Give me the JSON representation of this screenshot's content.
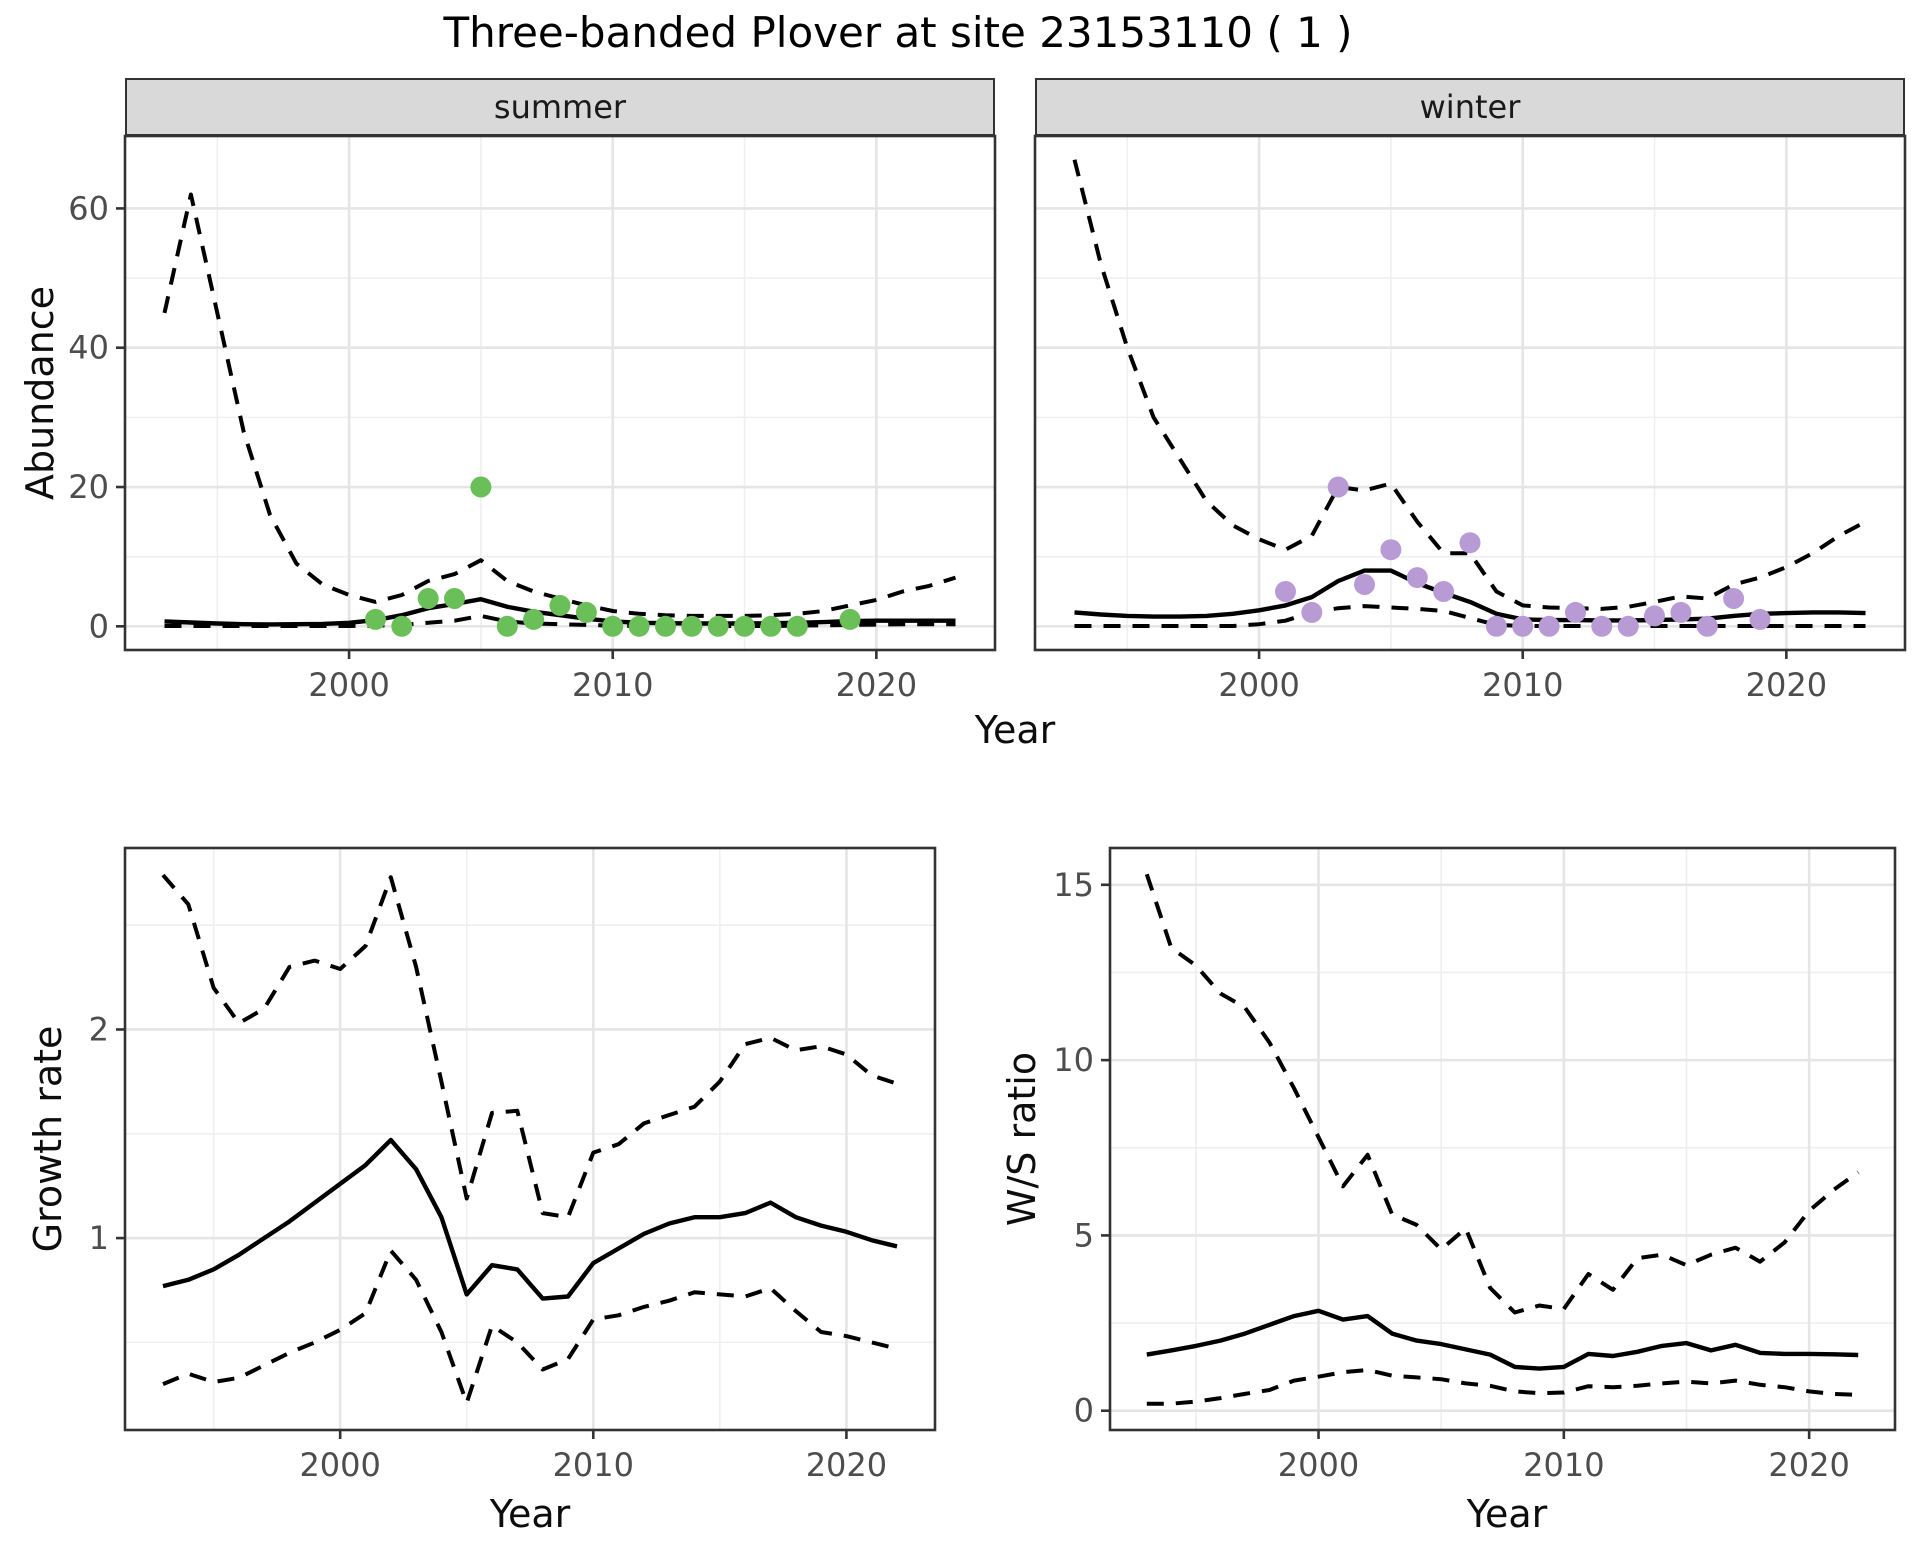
{
  "title": "Three-banded Plover at site 23153110 ( 1 )",
  "facets": [
    {
      "label": "summer"
    },
    {
      "label": "winter"
    }
  ],
  "axes": {
    "abundance_label": "Abundance",
    "growth_label": "Growth rate",
    "ws_label": "W/S ratio",
    "year_label": "Year"
  },
  "colors": {
    "summer_points": "#6abf59",
    "winter_points": "#b89bd5",
    "line": "#000000",
    "grid_major": "#e5e5e5",
    "grid_minor": "#efefef",
    "strip_bg": "#d9d9d9",
    "axis_text": "#4d4d4d",
    "panel_border": "#333333"
  },
  "chart_data": [
    {
      "id": "abundance-summer",
      "type": "line",
      "facet": "summer",
      "xlabel": "Year",
      "ylabel": "Abundance",
      "xlim": [
        1991.5,
        2024.5
      ],
      "ylim": [
        -3.4,
        70.4
      ],
      "xticks": [
        2000,
        2010,
        2020
      ],
      "xminor": [
        1995,
        2005,
        2015
      ],
      "yticks": [
        0,
        20,
        40,
        60
      ],
      "yminor": [
        10,
        30,
        50
      ],
      "show_ylabels": true,
      "x": [
        1993,
        1994,
        1995,
        1996,
        1997,
        1998,
        1999,
        2000,
        2001,
        2002,
        2003,
        2004,
        2005,
        2006,
        2007,
        2008,
        2009,
        2010,
        2011,
        2012,
        2013,
        2014,
        2015,
        2016,
        2017,
        2018,
        2019,
        2020,
        2021,
        2022,
        2023
      ],
      "series": [
        {
          "name": "upper_ci",
          "style": "dashed",
          "values": [
            45,
            62,
            45,
            28,
            16,
            9,
            6,
            4.5,
            3.5,
            4.5,
            6.5,
            7.5,
            9.5,
            6.5,
            5,
            4,
            3,
            2.2,
            1.8,
            1.6,
            1.5,
            1.5,
            1.5,
            1.6,
            1.8,
            2.2,
            3,
            3.8,
            5,
            5.8,
            7
          ]
        },
        {
          "name": "lower_ci",
          "style": "dashed",
          "values": [
            0.05,
            0.05,
            0.05,
            0.05,
            0.05,
            0.05,
            0.05,
            0.05,
            0.1,
            0.2,
            0.5,
            0.8,
            1.5,
            0.7,
            0.4,
            0.3,
            0.2,
            0.1,
            0.05,
            0.05,
            0.05,
            0.05,
            0.05,
            0.05,
            0.1,
            0.15,
            0.2,
            0.25,
            0.3,
            0.3,
            0.3
          ]
        },
        {
          "name": "fit",
          "style": "solid",
          "values": [
            0.7,
            0.55,
            0.4,
            0.3,
            0.28,
            0.3,
            0.35,
            0.5,
            0.9,
            1.6,
            2.6,
            3.2,
            3.9,
            2.8,
            2.1,
            1.6,
            1.1,
            0.7,
            0.5,
            0.45,
            0.4,
            0.4,
            0.4,
            0.45,
            0.5,
            0.6,
            0.75,
            0.8,
            0.8,
            0.8,
            0.8
          ]
        }
      ],
      "points": {
        "color_key": "summer_points",
        "x": [
          2001,
          2002,
          2003,
          2004,
          2005,
          2006,
          2007,
          2008,
          2009,
          2010,
          2011,
          2012,
          2013,
          2014,
          2015,
          2016,
          2017,
          2019
        ],
        "y": [
          1,
          0,
          4,
          4,
          20,
          0,
          1,
          3,
          2,
          0,
          0,
          0,
          0,
          0,
          0,
          0,
          0,
          1
        ]
      }
    },
    {
      "id": "abundance-winter",
      "type": "line",
      "facet": "winter",
      "xlabel": "Year",
      "ylabel": "Abundance",
      "xlim": [
        1991.5,
        2024.5
      ],
      "ylim": [
        -3.4,
        70.4
      ],
      "xticks": [
        2000,
        2010,
        2020
      ],
      "xminor": [
        1995,
        2005,
        2015
      ],
      "yticks": [
        0,
        20,
        40,
        60
      ],
      "yminor": [
        10,
        30,
        50
      ],
      "show_ylabels": false,
      "x": [
        1993,
        1994,
        1995,
        1996,
        1997,
        1998,
        1999,
        2000,
        2001,
        2002,
        2003,
        2004,
        2005,
        2006,
        2007,
        2008,
        2009,
        2010,
        2011,
        2012,
        2013,
        2014,
        2015,
        2016,
        2017,
        2018,
        2019,
        2020,
        2021,
        2022,
        2023
      ],
      "series": [
        {
          "name": "upper_ci",
          "style": "dashed",
          "values": [
            67,
            52,
            40,
            30,
            24,
            18,
            14.5,
            12.5,
            11,
            13,
            20,
            19.5,
            20.5,
            15,
            10.5,
            10.5,
            5,
            3,
            2.7,
            2.6,
            2.5,
            2.8,
            3.5,
            4.3,
            4,
            6,
            7,
            8.5,
            10.5,
            13,
            15
          ]
        },
        {
          "name": "lower_ci",
          "style": "dashed",
          "values": [
            0.05,
            0.05,
            0.05,
            0.05,
            0.05,
            0.05,
            0.05,
            0.3,
            0.8,
            2,
            2.6,
            2.9,
            2.7,
            2.5,
            2.2,
            1.2,
            0.2,
            0.05,
            0.05,
            0.05,
            0.05,
            0.05,
            0.05,
            0.05,
            0.05,
            0.05,
            0.05,
            0.05,
            0.05,
            0.05,
            0.05
          ]
        },
        {
          "name": "fit",
          "style": "solid",
          "values": [
            2,
            1.7,
            1.5,
            1.4,
            1.4,
            1.5,
            1.8,
            2.3,
            3,
            4.2,
            6.5,
            8,
            8,
            6.2,
            4.8,
            3.5,
            1.8,
            1.0,
            0.9,
            0.9,
            0.85,
            0.85,
            0.9,
            1.0,
            1.1,
            1.5,
            1.8,
            1.9,
            2,
            2,
            1.9
          ]
        }
      ],
      "points": {
        "color_key": "winter_points",
        "x": [
          2001,
          2002,
          2003,
          2004,
          2005,
          2006,
          2007,
          2008,
          2009,
          2010,
          2011,
          2012,
          2013,
          2014,
          2015,
          2016,
          2017,
          2018,
          2019
        ],
        "y": [
          5,
          2,
          20,
          6,
          11,
          7,
          5,
          12,
          0,
          0,
          0,
          2,
          0,
          0,
          1.5,
          2,
          0,
          4,
          1
        ]
      }
    },
    {
      "id": "growth-rate",
      "type": "line",
      "xlabel": "Year",
      "ylabel": "Growth rate",
      "xlim": [
        1991.5,
        2023.5
      ],
      "ylim": [
        0.08,
        2.87
      ],
      "xticks": [
        2000,
        2010,
        2020
      ],
      "xminor": [
        1995,
        2005,
        2015
      ],
      "yticks": [
        1,
        2
      ],
      "yminor": [
        0.5,
        1.5,
        2.5
      ],
      "show_ylabels": true,
      "x": [
        1993,
        1994,
        1995,
        1996,
        1997,
        1998,
        1999,
        2000,
        2001,
        2002,
        2003,
        2004,
        2005,
        2006,
        2007,
        2008,
        2009,
        2010,
        2011,
        2012,
        2013,
        2014,
        2015,
        2016,
        2017,
        2018,
        2019,
        2020,
        2021,
        2022
      ],
      "series": [
        {
          "name": "upper_ci",
          "style": "dashed",
          "values": [
            2.74,
            2.6,
            2.2,
            2.03,
            2.1,
            2.3,
            2.33,
            2.29,
            2.4,
            2.73,
            2.3,
            1.75,
            1.19,
            1.6,
            1.61,
            1.12,
            1.1,
            1.41,
            1.45,
            1.55,
            1.59,
            1.63,
            1.75,
            1.93,
            1.96,
            1.9,
            1.92,
            1.88,
            1.78,
            1.74
          ]
        },
        {
          "name": "lower_ci",
          "style": "dashed",
          "values": [
            0.3,
            0.35,
            0.31,
            0.33,
            0.39,
            0.45,
            0.5,
            0.56,
            0.64,
            0.94,
            0.8,
            0.55,
            0.21,
            0.58,
            0.5,
            0.37,
            0.42,
            0.61,
            0.63,
            0.67,
            0.7,
            0.74,
            0.73,
            0.72,
            0.76,
            0.65,
            0.55,
            0.53,
            0.5,
            0.47
          ]
        },
        {
          "name": "fit",
          "style": "solid",
          "values": [
            0.77,
            0.8,
            0.85,
            0.92,
            1.0,
            1.08,
            1.17,
            1.26,
            1.35,
            1.47,
            1.33,
            1.1,
            0.73,
            0.87,
            0.85,
            0.71,
            0.72,
            0.88,
            0.95,
            1.02,
            1.07,
            1.1,
            1.1,
            1.12,
            1.17,
            1.1,
            1.06,
            1.03,
            0.99,
            0.96
          ]
        }
      ]
    },
    {
      "id": "ws-ratio",
      "type": "line",
      "xlabel": "Year",
      "ylabel": "W/S ratio",
      "xlim": [
        1991.5,
        2023.5
      ],
      "ylim": [
        -0.55,
        16.05
      ],
      "xticks": [
        2000,
        2010,
        2020
      ],
      "xminor": [
        1995,
        2005,
        2015
      ],
      "yticks": [
        0,
        5,
        10,
        15
      ],
      "yminor": [
        2.5,
        7.5,
        12.5
      ],
      "show_ylabels": true,
      "x": [
        1993,
        1994,
        1995,
        1996,
        1997,
        1998,
        1999,
        2000,
        2001,
        2002,
        2003,
        2004,
        2005,
        2006,
        2007,
        2008,
        2009,
        2010,
        2011,
        2012,
        2013,
        2014,
        2015,
        2016,
        2017,
        2018,
        2019,
        2020,
        2021,
        2022
      ],
      "series": [
        {
          "name": "upper_ci",
          "style": "dashed",
          "values": [
            15.3,
            13.2,
            12.7,
            11.9,
            11.5,
            10.5,
            9.2,
            7.8,
            6.4,
            7.3,
            5.6,
            5.3,
            4.6,
            5.2,
            3.5,
            2.8,
            3.0,
            2.9,
            3.9,
            3.45,
            4.35,
            4.45,
            4.15,
            4.45,
            4.65,
            4.25,
            4.8,
            5.7,
            6.3,
            6.8
          ]
        },
        {
          "name": "lower_ci",
          "style": "dashed",
          "values": [
            0.2,
            0.2,
            0.26,
            0.36,
            0.48,
            0.59,
            0.86,
            0.97,
            1.1,
            1.16,
            1.0,
            0.95,
            0.9,
            0.78,
            0.71,
            0.55,
            0.5,
            0.52,
            0.7,
            0.67,
            0.71,
            0.78,
            0.83,
            0.78,
            0.86,
            0.74,
            0.67,
            0.55,
            0.48,
            0.45
          ]
        },
        {
          "name": "fit",
          "style": "solid",
          "values": [
            1.6,
            1.72,
            1.85,
            2.0,
            2.2,
            2.45,
            2.7,
            2.85,
            2.6,
            2.7,
            2.2,
            2.0,
            1.9,
            1.75,
            1.6,
            1.25,
            1.2,
            1.25,
            1.62,
            1.56,
            1.68,
            1.85,
            1.93,
            1.72,
            1.88,
            1.65,
            1.62,
            1.62,
            1.61,
            1.59
          ]
        }
      ]
    }
  ]
}
